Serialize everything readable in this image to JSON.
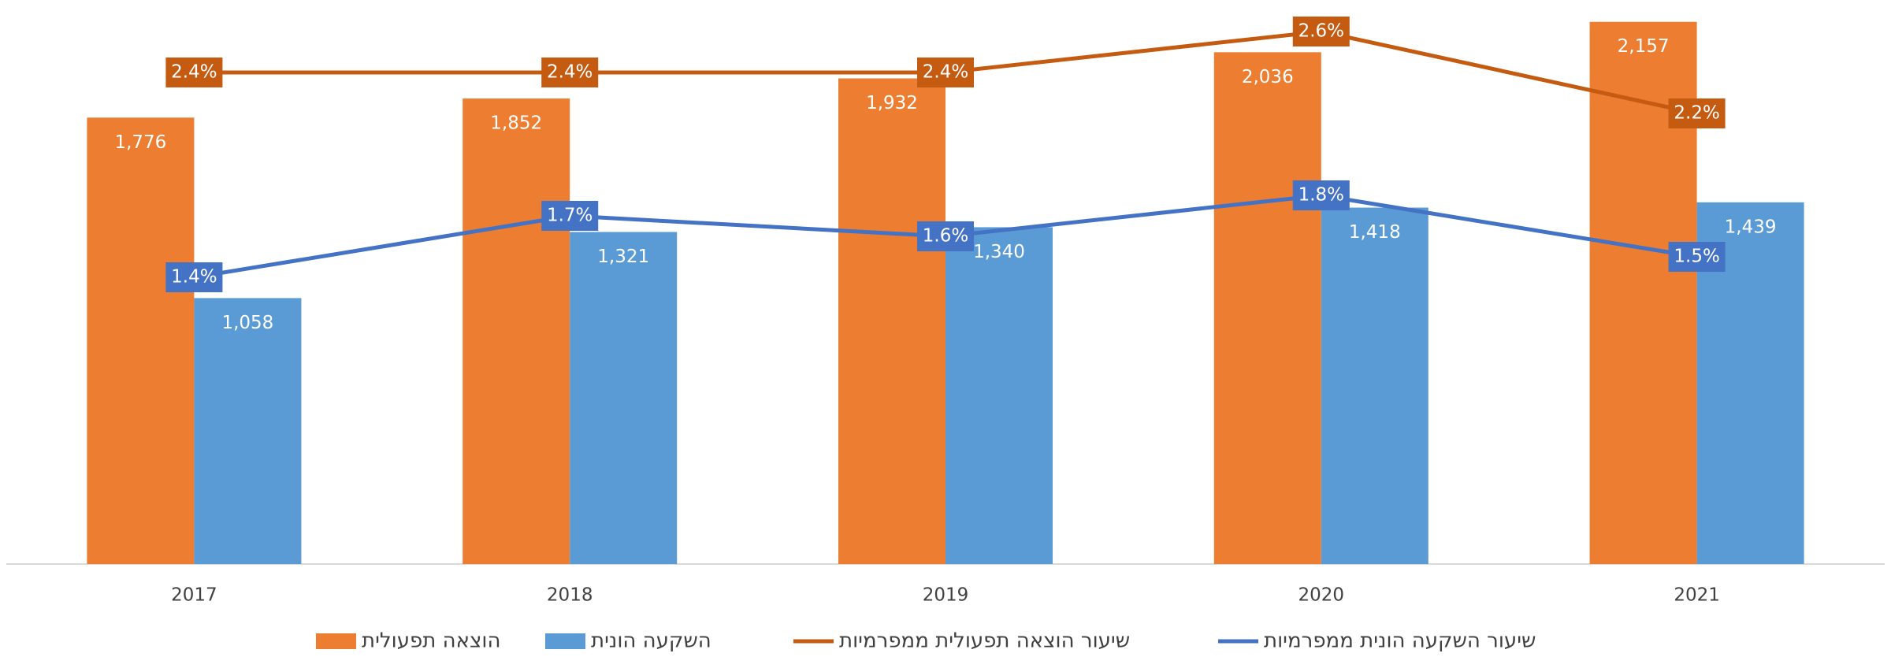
{
  "chart_data": {
    "type": "bar",
    "categories": [
      "2017",
      "2018",
      "2019",
      "2020",
      "2021"
    ],
    "series": [
      {
        "name": "הוצאה תפעולית",
        "type": "bar",
        "color": "#ED7D31",
        "values": [
          1776,
          1852,
          1932,
          2036,
          2157
        ],
        "value_labels": [
          "1,776",
          "1,852",
          "1,932",
          "2,036",
          "2,157"
        ]
      },
      {
        "name": "השקעה הונית",
        "type": "bar",
        "color": "#5B9BD5",
        "values": [
          1058,
          1321,
          1340,
          1418,
          1439
        ],
        "value_labels": [
          "1,058",
          "1,321",
          "1,340",
          "1,418",
          "1,439"
        ]
      },
      {
        "name": "שיעור הוצאה תפעולית ממפרמיות",
        "type": "line",
        "axis": "y2",
        "color": "#C55A11",
        "values": [
          2.4,
          2.4,
          2.4,
          2.6,
          2.2
        ],
        "value_labels": [
          "2.4%",
          "2.4%",
          "2.4%",
          "2.6%",
          "2.2%"
        ]
      },
      {
        "name": "שיעור השקעה הונית ממפרמיות",
        "type": "line",
        "axis": "y2",
        "color": "#4472C4",
        "values": [
          1.4,
          1.7,
          1.6,
          1.8,
          1.5
        ],
        "value_labels": [
          "1.4%",
          "1.7%",
          "1.6%",
          "1.8%",
          "1.5%"
        ]
      }
    ],
    "ylim": [
      0,
      2200
    ],
    "y2lim": [
      0,
      2.7
    ]
  }
}
